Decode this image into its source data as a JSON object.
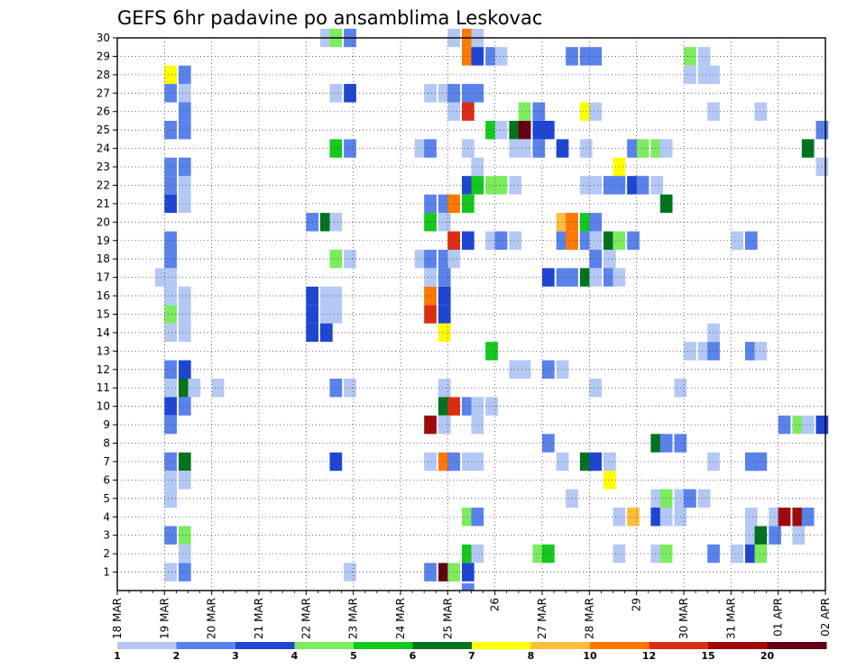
{
  "chart_data": {
    "type": "heatmap",
    "title": "GEFS 6hr padavine po ansamblima Leskovac",
    "xlabel": "",
    "ylabel": "",
    "x_tick_labels": [
      "18 MAR",
      "19 MAR",
      "20 MAR",
      "21 MAR",
      "22 MAR",
      "23 MAR",
      "24 MAR",
      "25 MAR",
      "26",
      "27 MAR",
      "28 MAR",
      "29",
      "30 MAR",
      "31 MAR",
      "01 APR",
      "02 APR"
    ],
    "x_range": [
      "18 MAR 00Z",
      "02 APR 00Z"
    ],
    "time_step_hours": 6,
    "y_tick_labels": [
      "1",
      "2",
      "3",
      "4",
      "5",
      "6",
      "7",
      "8",
      "9",
      "10",
      "11",
      "12",
      "13",
      "14",
      "15",
      "16",
      "17",
      "18",
      "19",
      "20",
      "21",
      "22",
      "23",
      "24",
      "25",
      "26",
      "27",
      "28",
      "29",
      "30"
    ],
    "y_range": [
      0,
      30
    ],
    "grid": true,
    "legend": {
      "placement": "bottom",
      "labels": [
        "1",
        "2",
        "3",
        "4",
        "5",
        "6",
        "7",
        "8",
        "10",
        "12",
        "15",
        "20"
      ],
      "colors": [
        "#b4c8f5",
        "#5a82eb",
        "#1e46d2",
        "#7deb5f",
        "#14c81e",
        "#00731e",
        "#ffff00",
        "#ffbe3c",
        "#ff7800",
        "#dc2d14",
        "#a00a0a",
        "#640014"
      ]
    },
    "cells": [
      [
        30,
        22.3,
        "#b4c8f5"
      ],
      [
        30,
        22.5,
        "#7deb5f"
      ],
      [
        30,
        22.8,
        "#5a82eb"
      ],
      [
        30,
        25.0,
        "#b4c8f5"
      ],
      [
        30,
        25.3,
        "#ff7800"
      ],
      [
        30,
        25.5,
        "#b4c8f5"
      ],
      [
        29,
        25.3,
        "#ff7800"
      ],
      [
        29,
        25.5,
        "#1e46d2"
      ],
      [
        29,
        25.8,
        "#5a82eb"
      ],
      [
        29,
        26.0,
        "#b4c8f5"
      ],
      [
        29,
        27.5,
        "#5a82eb"
      ],
      [
        29,
        27.8,
        "#5a82eb"
      ],
      [
        29,
        28.0,
        "#5a82eb"
      ],
      [
        29,
        30.0,
        "#7deb5f"
      ],
      [
        29,
        30.3,
        "#b4c8f5"
      ],
      [
        28,
        19.0,
        "#ffff00"
      ],
      [
        28,
        19.3,
        "#5a82eb"
      ],
      [
        28,
        30.0,
        "#b4c8f5"
      ],
      [
        28,
        30.3,
        "#b4c8f5"
      ],
      [
        28,
        30.5,
        "#b4c8f5"
      ],
      [
        27,
        19.0,
        "#5a82eb"
      ],
      [
        27,
        19.3,
        "#b4c8f5"
      ],
      [
        27,
        22.5,
        "#b4c8f5"
      ],
      [
        27,
        22.8,
        "#1e46d2"
      ],
      [
        27,
        24.5,
        "#b4c8f5"
      ],
      [
        27,
        24.8,
        "#b4c8f5"
      ],
      [
        27,
        25.0,
        "#5a82eb"
      ],
      [
        27,
        25.3,
        "#5a82eb"
      ],
      [
        27,
        25.5,
        "#5a82eb"
      ],
      [
        26,
        19.3,
        "#5a82eb"
      ],
      [
        26,
        25.0,
        "#b4c8f5"
      ],
      [
        26,
        25.3,
        "#dc2d14"
      ],
      [
        26,
        26.5,
        "#7deb5f"
      ],
      [
        26,
        26.8,
        "#5a82eb"
      ],
      [
        26,
        27.8,
        "#ffff00"
      ],
      [
        26,
        28.0,
        "#b4c8f5"
      ],
      [
        26,
        30.5,
        "#b4c8f5"
      ],
      [
        26,
        31.5,
        "#b4c8f5"
      ],
      [
        25,
        19.0,
        "#5a82eb"
      ],
      [
        25,
        19.3,
        "#5a82eb"
      ],
      [
        25,
        25.8,
        "#14c81e"
      ],
      [
        25,
        26.0,
        "#b4c8f5"
      ],
      [
        25,
        26.3,
        "#00731e"
      ],
      [
        25,
        26.5,
        "#640014"
      ],
      [
        25,
        26.8,
        "#1e46d2"
      ],
      [
        25,
        27.0,
        "#1e46d2"
      ],
      [
        25,
        32.8,
        "#5a82eb"
      ],
      [
        24,
        22.5,
        "#14c81e"
      ],
      [
        24,
        22.8,
        "#5a82eb"
      ],
      [
        24,
        24.3,
        "#b4c8f5"
      ],
      [
        24,
        24.5,
        "#5a82eb"
      ],
      [
        24,
        25.3,
        "#b4c8f5"
      ],
      [
        24,
        26.3,
        "#b4c8f5"
      ],
      [
        24,
        26.5,
        "#b4c8f5"
      ],
      [
        24,
        26.8,
        "#5a82eb"
      ],
      [
        24,
        27.3,
        "#1e46d2"
      ],
      [
        24,
        27.8,
        "#b4c8f5"
      ],
      [
        24,
        28.8,
        "#5a82eb"
      ],
      [
        24,
        29.0,
        "#7deb5f"
      ],
      [
        24,
        29.3,
        "#7deb5f"
      ],
      [
        24,
        29.5,
        "#b4c8f5"
      ],
      [
        24,
        32.5,
        "#00731e"
      ],
      [
        23,
        19.0,
        "#5a82eb"
      ],
      [
        23,
        19.3,
        "#5a82eb"
      ],
      [
        23,
        25.5,
        "#b4c8f5"
      ],
      [
        23,
        28.5,
        "#ffff00"
      ],
      [
        23,
        32.8,
        "#b4c8f5"
      ],
      [
        22,
        19.0,
        "#5a82eb"
      ],
      [
        22,
        19.3,
        "#b4c8f5"
      ],
      [
        22,
        25.3,
        "#1e46d2"
      ],
      [
        22,
        25.5,
        "#14c81e"
      ],
      [
        22,
        25.8,
        "#7deb5f"
      ],
      [
        22,
        26.0,
        "#7deb5f"
      ],
      [
        22,
        26.3,
        "#b4c8f5"
      ],
      [
        22,
        27.8,
        "#b4c8f5"
      ],
      [
        22,
        28.0,
        "#b4c8f5"
      ],
      [
        22,
        28.3,
        "#5a82eb"
      ],
      [
        22,
        28.5,
        "#5a82eb"
      ],
      [
        22,
        28.8,
        "#1e46d2"
      ],
      [
        22,
        29.0,
        "#5a82eb"
      ],
      [
        22,
        29.3,
        "#b4c8f5"
      ],
      [
        21,
        19.0,
        "#1e46d2"
      ],
      [
        21,
        19.3,
        "#b4c8f5"
      ],
      [
        21,
        24.5,
        "#5a82eb"
      ],
      [
        21,
        24.8,
        "#5a82eb"
      ],
      [
        21,
        25.0,
        "#ff7800"
      ],
      [
        21,
        25.3,
        "#14c81e"
      ],
      [
        21,
        29.5,
        "#00731e"
      ],
      [
        20,
        22.0,
        "#5a82eb"
      ],
      [
        20,
        22.3,
        "#00731e"
      ],
      [
        20,
        22.5,
        "#b4c8f5"
      ],
      [
        20,
        24.5,
        "#14c81e"
      ],
      [
        20,
        24.8,
        "#b4c8f5"
      ],
      [
        20,
        27.3,
        "#ffbe3c"
      ],
      [
        20,
        27.5,
        "#ff7800"
      ],
      [
        20,
        27.8,
        "#14c81e"
      ],
      [
        20,
        28.0,
        "#5a82eb"
      ],
      [
        19,
        19.0,
        "#5a82eb"
      ],
      [
        19,
        25.0,
        "#dc2d14"
      ],
      [
        19,
        25.3,
        "#1e46d2"
      ],
      [
        19,
        25.8,
        "#b4c8f5"
      ],
      [
        19,
        26.0,
        "#5a82eb"
      ],
      [
        19,
        26.3,
        "#b4c8f5"
      ],
      [
        19,
        27.3,
        "#5a82eb"
      ],
      [
        19,
        27.5,
        "#ff7800"
      ],
      [
        19,
        27.8,
        "#5a82eb"
      ],
      [
        19,
        28.0,
        "#b4c8f5"
      ],
      [
        19,
        28.3,
        "#00731e"
      ],
      [
        19,
        28.5,
        "#7deb5f"
      ],
      [
        19,
        28.8,
        "#5a82eb"
      ],
      [
        19,
        31.0,
        "#b4c8f5"
      ],
      [
        19,
        31.3,
        "#5a82eb"
      ],
      [
        18,
        19.0,
        "#5a82eb"
      ],
      [
        18,
        22.5,
        "#7deb5f"
      ],
      [
        18,
        22.8,
        "#b4c8f5"
      ],
      [
        18,
        24.3,
        "#b4c8f5"
      ],
      [
        18,
        24.5,
        "#5a82eb"
      ],
      [
        18,
        24.8,
        "#5a82eb"
      ],
      [
        18,
        25.0,
        "#b4c8f5"
      ],
      [
        18,
        28.0,
        "#5a82eb"
      ],
      [
        18,
        28.3,
        "#b4c8f5"
      ],
      [
        17,
        18.8,
        "#b4c8f5"
      ],
      [
        17,
        19.0,
        "#b4c8f5"
      ],
      [
        17,
        24.5,
        "#b4c8f5"
      ],
      [
        17,
        24.8,
        "#5a82eb"
      ],
      [
        17,
        27.0,
        "#1e46d2"
      ],
      [
        17,
        27.3,
        "#5a82eb"
      ],
      [
        17,
        27.5,
        "#5a82eb"
      ],
      [
        17,
        27.8,
        "#00731e"
      ],
      [
        17,
        28.0,
        "#b4c8f5"
      ],
      [
        17,
        28.3,
        "#5a82eb"
      ],
      [
        17,
        28.5,
        "#b4c8f5"
      ],
      [
        16,
        19.0,
        "#b4c8f5"
      ],
      [
        16,
        19.3,
        "#b4c8f5"
      ],
      [
        16,
        22.0,
        "#1e46d2"
      ],
      [
        16,
        22.3,
        "#b4c8f5"
      ],
      [
        16,
        22.5,
        "#b4c8f5"
      ],
      [
        16,
        24.5,
        "#ff7800"
      ],
      [
        16,
        24.8,
        "#1e46d2"
      ],
      [
        15,
        19.0,
        "#7deb5f"
      ],
      [
        15,
        19.3,
        "#b4c8f5"
      ],
      [
        15,
        22.0,
        "#1e46d2"
      ],
      [
        15,
        22.3,
        "#b4c8f5"
      ],
      [
        15,
        22.5,
        "#b4c8f5"
      ],
      [
        15,
        24.5,
        "#dc2d14"
      ],
      [
        15,
        24.8,
        "#1e46d2"
      ],
      [
        14,
        19.0,
        "#b4c8f5"
      ],
      [
        14,
        19.3,
        "#b4c8f5"
      ],
      [
        14,
        22.0,
        "#1e46d2"
      ],
      [
        14,
        22.3,
        "#1e46d2"
      ],
      [
        14,
        24.8,
        "#ffff00"
      ],
      [
        14,
        30.5,
        "#b4c8f5"
      ],
      [
        13,
        25.8,
        "#14c81e"
      ],
      [
        13,
        30.0,
        "#b4c8f5"
      ],
      [
        13,
        30.3,
        "#b4c8f5"
      ],
      [
        13,
        30.5,
        "#5a82eb"
      ],
      [
        13,
        31.3,
        "#5a82eb"
      ],
      [
        13,
        31.5,
        "#b4c8f5"
      ],
      [
        12,
        19.0,
        "#5a82eb"
      ],
      [
        12,
        19.3,
        "#1e46d2"
      ],
      [
        12,
        26.3,
        "#b4c8f5"
      ],
      [
        12,
        26.5,
        "#b4c8f5"
      ],
      [
        12,
        27.0,
        "#5a82eb"
      ],
      [
        12,
        27.3,
        "#b4c8f5"
      ],
      [
        11,
        19.0,
        "#b4c8f5"
      ],
      [
        11,
        19.3,
        "#00731e"
      ],
      [
        11,
        19.5,
        "#b4c8f5"
      ],
      [
        11,
        20.0,
        "#b4c8f5"
      ],
      [
        11,
        22.5,
        "#5a82eb"
      ],
      [
        11,
        22.8,
        "#b4c8f5"
      ],
      [
        11,
        24.8,
        "#b4c8f5"
      ],
      [
        11,
        28.0,
        "#b4c8f5"
      ],
      [
        11,
        29.8,
        "#b4c8f5"
      ],
      [
        10,
        19.0,
        "#1e46d2"
      ],
      [
        10,
        19.3,
        "#5a82eb"
      ],
      [
        10,
        24.8,
        "#00731e"
      ],
      [
        10,
        25.0,
        "#dc2d14"
      ],
      [
        10,
        25.3,
        "#5a82eb"
      ],
      [
        10,
        25.5,
        "#b4c8f5"
      ],
      [
        10,
        25.8,
        "#b4c8f5"
      ],
      [
        9,
        19.0,
        "#5a82eb"
      ],
      [
        9,
        24.5,
        "#a00a0a"
      ],
      [
        9,
        24.8,
        "#b4c8f5"
      ],
      [
        9,
        25.5,
        "#b4c8f5"
      ],
      [
        9,
        32.0,
        "#5a82eb"
      ],
      [
        9,
        32.3,
        "#7deb5f"
      ],
      [
        9,
        32.5,
        "#b4c8f5"
      ],
      [
        9,
        32.8,
        "#1e46d2"
      ],
      [
        8,
        27.0,
        "#5a82eb"
      ],
      [
        8,
        29.3,
        "#00731e"
      ],
      [
        8,
        29.5,
        "#5a82eb"
      ],
      [
        8,
        29.8,
        "#5a82eb"
      ],
      [
        7,
        19.0,
        "#5a82eb"
      ],
      [
        7,
        19.3,
        "#00731e"
      ],
      [
        7,
        22.5,
        "#1e46d2"
      ],
      [
        7,
        24.5,
        "#b4c8f5"
      ],
      [
        7,
        24.8,
        "#ff7800"
      ],
      [
        7,
        25.0,
        "#5a82eb"
      ],
      [
        7,
        25.3,
        "#b4c8f5"
      ],
      [
        7,
        25.5,
        "#b4c8f5"
      ],
      [
        7,
        27.3,
        "#b4c8f5"
      ],
      [
        7,
        27.8,
        "#00731e"
      ],
      [
        7,
        28.0,
        "#1e46d2"
      ],
      [
        7,
        28.3,
        "#b4c8f5"
      ],
      [
        7,
        30.5,
        "#b4c8f5"
      ],
      [
        7,
        31.3,
        "#5a82eb"
      ],
      [
        7,
        31.5,
        "#5a82eb"
      ],
      [
        6,
        19.0,
        "#b4c8f5"
      ],
      [
        6,
        19.3,
        "#b4c8f5"
      ],
      [
        6,
        28.3,
        "#ffff00"
      ],
      [
        5,
        19.0,
        "#b4c8f5"
      ],
      [
        5,
        27.5,
        "#b4c8f5"
      ],
      [
        5,
        29.3,
        "#b4c8f5"
      ],
      [
        5,
        29.5,
        "#7deb5f"
      ],
      [
        5,
        29.8,
        "#b4c8f5"
      ],
      [
        5,
        30.0,
        "#5a82eb"
      ],
      [
        5,
        30.3,
        "#b4c8f5"
      ],
      [
        4,
        25.3,
        "#7deb5f"
      ],
      [
        4,
        25.5,
        "#5a82eb"
      ],
      [
        4,
        28.5,
        "#b4c8f5"
      ],
      [
        4,
        28.8,
        "#ffbe3c"
      ],
      [
        4,
        29.3,
        "#1e46d2"
      ],
      [
        4,
        29.5,
        "#b4c8f5"
      ],
      [
        4,
        29.8,
        "#b4c8f5"
      ],
      [
        4,
        31.3,
        "#b4c8f5"
      ],
      [
        4,
        31.8,
        "#b4c8f5"
      ],
      [
        4,
        32.0,
        "#a00a0a"
      ],
      [
        4,
        32.3,
        "#a00a0a"
      ],
      [
        4,
        32.5,
        "#5a82eb"
      ],
      [
        3,
        19.0,
        "#5a82eb"
      ],
      [
        3,
        19.3,
        "#7deb5f"
      ],
      [
        3,
        31.3,
        "#b4c8f5"
      ],
      [
        3,
        31.5,
        "#00731e"
      ],
      [
        3,
        31.8,
        "#5a82eb"
      ],
      [
        3,
        32.3,
        "#b4c8f5"
      ],
      [
        2,
        19.3,
        "#b4c8f5"
      ],
      [
        2,
        25.3,
        "#14c81e"
      ],
      [
        2,
        25.5,
        "#b4c8f5"
      ],
      [
        2,
        26.8,
        "#7deb5f"
      ],
      [
        2,
        27.0,
        "#14c81e"
      ],
      [
        2,
        28.5,
        "#b4c8f5"
      ],
      [
        2,
        29.3,
        "#b4c8f5"
      ],
      [
        2,
        29.5,
        "#7deb5f"
      ],
      [
        2,
        30.5,
        "#5a82eb"
      ],
      [
        2,
        31.0,
        "#b4c8f5"
      ],
      [
        2,
        31.3,
        "#1e46d2"
      ],
      [
        2,
        31.5,
        "#7deb5f"
      ],
      [
        1,
        19.0,
        "#b4c8f5"
      ],
      [
        1,
        19.3,
        "#5a82eb"
      ],
      [
        1,
        22.8,
        "#b4c8f5"
      ],
      [
        1,
        24.5,
        "#5a82eb"
      ],
      [
        1,
        24.8,
        "#640014"
      ],
      [
        1,
        25.0,
        "#7deb5f"
      ],
      [
        1,
        25.3,
        "#1e46d2"
      ],
      [
        0,
        25.3,
        "#5a82eb"
      ]
    ]
  }
}
